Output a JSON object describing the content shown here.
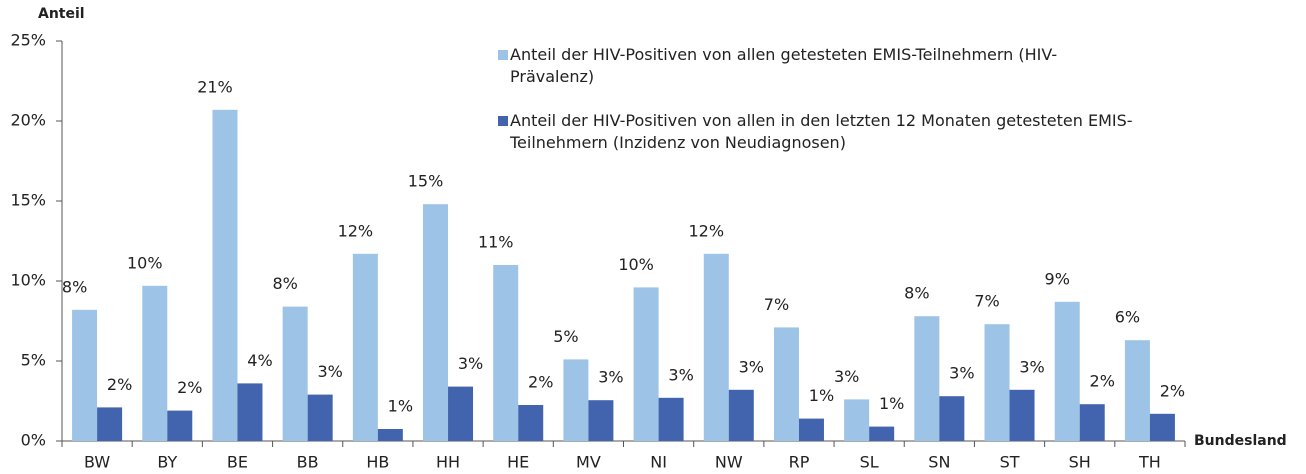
{
  "chart_data": {
    "type": "bar",
    "y_label": "Anteil",
    "x_label": "Bundesland",
    "categories": [
      "BW",
      "BY",
      "BE",
      "BB",
      "HB",
      "HH",
      "HE",
      "MV",
      "NI",
      "NW",
      "RP",
      "SL",
      "SN",
      "ST",
      "SH",
      "TH"
    ],
    "series": [
      {
        "name": "Anteil der HIV-Positiven von allen getesteten EMIS-Teilnehmern (HIV-Prävalenz)",
        "color": "#9dc3e6",
        "values": [
          8.2,
          9.7,
          20.7,
          8.4,
          11.7,
          14.8,
          11.0,
          5.1,
          9.6,
          11.7,
          7.1,
          2.6,
          7.8,
          7.3,
          8.7,
          6.3
        ],
        "value_labels": [
          "8%",
          "10%",
          "21%",
          "8%",
          "12%",
          "15%",
          "11%",
          "5%",
          "10%",
          "12%",
          "7%",
          "3%",
          "8%",
          "7%",
          "9%",
          "6%"
        ]
      },
      {
        "name": "Anteil der HIV-Positiven von allen in den letzten 12 Monaten getesteten EMIS-Teilnehmern (Inzidenz von Neudiagnosen)",
        "color": "#4263ae",
        "values": [
          2.1,
          1.9,
          3.6,
          2.9,
          0.75,
          3.4,
          2.25,
          2.55,
          2.7,
          3.2,
          1.4,
          0.9,
          2.8,
          3.2,
          2.3,
          1.7
        ],
        "value_labels": [
          "2%",
          "2%",
          "4%",
          "3%",
          "1%",
          "3%",
          "2%",
          "3%",
          "3%",
          "3%",
          "1%",
          "1%",
          "3%",
          "3%",
          "2%",
          "2%"
        ]
      }
    ],
    "ylim": [
      0,
      25
    ],
    "yticks": [
      {
        "value": 0,
        "label": "0%"
      },
      {
        "value": 5,
        "label": "5%"
      },
      {
        "value": 10,
        "label": "10%"
      },
      {
        "value": 15,
        "label": "15%"
      },
      {
        "value": 20,
        "label": "20%"
      },
      {
        "value": 25,
        "label": "25%"
      }
    ],
    "grid": false
  }
}
